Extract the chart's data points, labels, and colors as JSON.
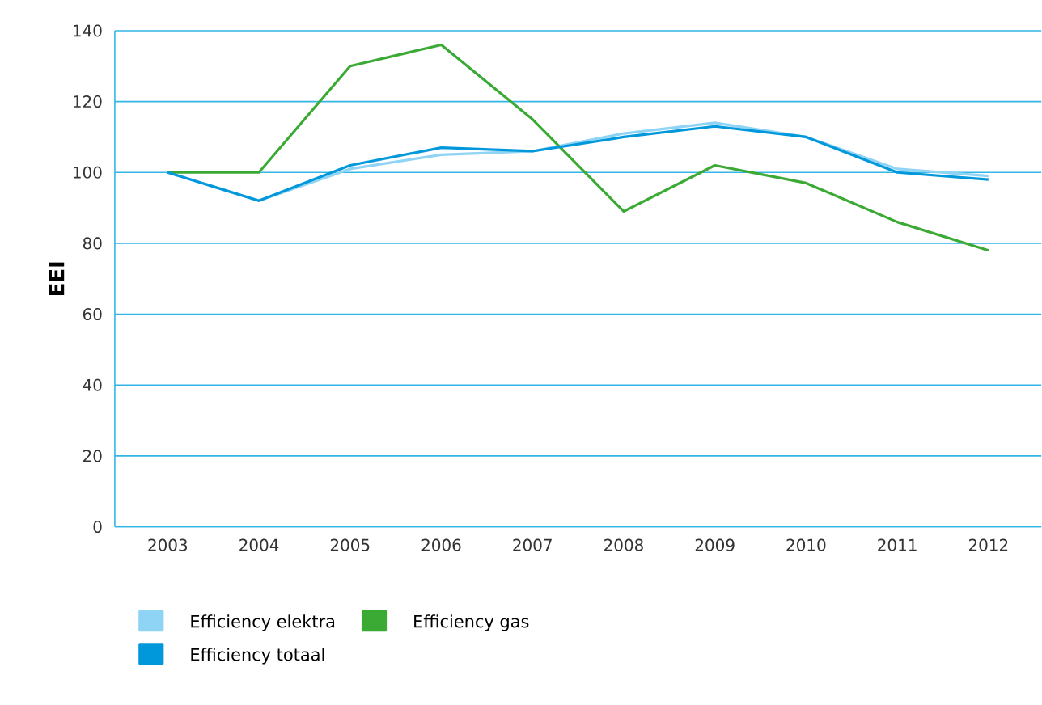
{
  "chart_data": {
    "type": "line",
    "ylabel": "EEI",
    "categories": [
      "2003",
      "2004",
      "2005",
      "2006",
      "2007",
      "2008",
      "2009",
      "2010",
      "2011",
      "2012"
    ],
    "series": [
      {
        "name": "Efficiency elektra",
        "color": "#8fd3f5",
        "values": [
          100,
          92,
          101,
          105,
          106,
          111,
          114,
          110,
          101,
          99
        ]
      },
      {
        "name": "Efficiency gas",
        "color": "#3aaa35",
        "values": [
          100,
          100,
          130,
          136,
          115,
          89,
          102,
          97,
          86,
          78
        ]
      },
      {
        "name": "Efficiency totaal",
        "color": "#0098db",
        "values": [
          100,
          92,
          102,
          107,
          106,
          110,
          113,
          110,
          100,
          98
        ]
      }
    ],
    "ylim": [
      0,
      140
    ],
    "yticks": [
      0,
      20,
      40,
      60,
      80,
      100,
      120,
      140
    ],
    "grid": "y",
    "legend": "bottom",
    "marker": "none",
    "line_style": "solid"
  }
}
